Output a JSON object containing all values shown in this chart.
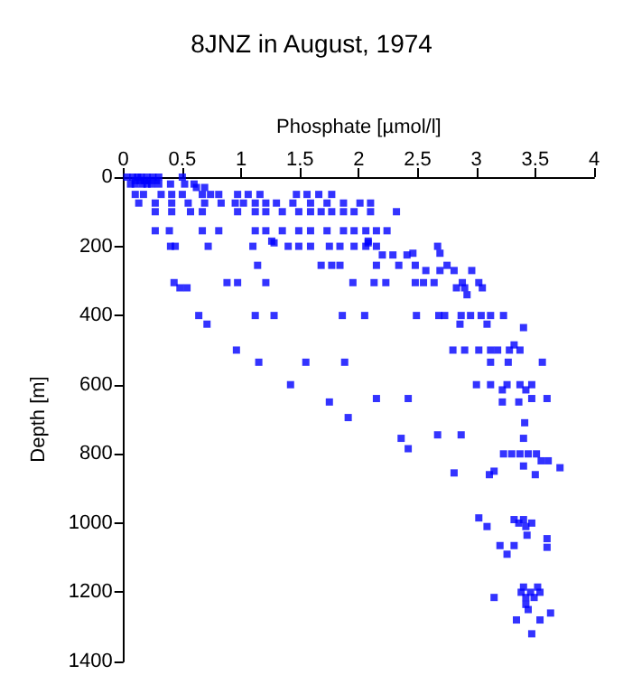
{
  "chart_data": {
    "type": "scatter",
    "title": "8JNZ in August, 1974",
    "xlabel": "Phosphate [µmol/l]",
    "ylabel": "Depth [m]",
    "xlim": [
      0,
      4
    ],
    "xticks": [
      0,
      0.5,
      1,
      1.5,
      2,
      2.5,
      3,
      3.5,
      4
    ],
    "ylim": [
      1400,
      0
    ],
    "yticks": [
      0,
      200,
      400,
      600,
      800,
      1000,
      1200,
      1400
    ],
    "grid": false,
    "marker": "square",
    "series": [
      {
        "color": "#0000ff",
        "x": [
          0.03,
          0.08,
          0.12,
          0.15,
          0.2,
          0.25,
          0.3,
          0.5,
          0.1,
          0.14,
          0.18,
          0.22,
          0.28,
          0.06,
          0.1,
          0.16,
          0.2,
          0.24,
          0.3,
          0.4,
          0.52,
          0.6,
          0.62,
          0.69,
          0.1,
          0.17,
          0.32,
          0.41,
          0.5,
          0.67,
          0.74,
          0.81,
          0.97,
          1.06,
          1.16,
          1.47,
          1.56,
          1.66,
          1.77,
          0.13,
          0.27,
          0.41,
          0.55,
          0.69,
          0.83,
          0.95,
          1.02,
          1.12,
          1.21,
          1.3,
          1.44,
          1.59,
          1.73,
          1.87,
          2.01,
          2.1,
          0.27,
          0.41,
          0.57,
          0.67,
          0.97,
          1.12,
          1.21,
          1.35,
          1.49,
          1.59,
          1.68,
          1.77,
          1.87,
          1.96,
          2.1,
          2.32,
          0.27,
          0.39,
          0.67,
          0.81,
          1.12,
          1.21,
          1.35,
          1.49,
          1.59,
          1.73,
          1.87,
          1.96,
          2.06,
          2.15,
          2.24,
          1.26,
          2.08,
          0.4,
          0.44,
          0.72,
          1.1,
          1.4,
          1.49,
          1.59,
          1.75,
          1.84,
          1.96,
          2.06,
          2.15,
          2.67,
          1.28,
          2.08,
          2.2,
          2.29,
          2.41,
          2.46,
          2.69,
          1.14,
          1.68,
          1.77,
          1.84,
          2.15,
          2.34,
          2.48,
          2.75,
          2.57,
          2.69,
          2.81,
          2.96,
          0.43,
          0.88,
          0.97,
          1.21,
          1.95,
          2.13,
          2.23,
          2.48,
          2.55,
          2.64,
          2.88,
          3.02,
          0.48,
          0.54,
          2.83,
          2.9,
          3.05,
          2.92,
          0.64,
          1.12,
          1.28,
          1.86,
          2.05,
          2.49,
          2.68,
          2.73,
          2.87,
          2.95,
          3.04,
          3.12,
          3.23,
          0.71,
          2.86,
          3.09,
          3.4,
          0.96,
          2.8,
          2.9,
          3.02,
          3.12,
          3.18,
          3.28,
          3.37,
          3.32,
          1.15,
          1.55,
          1.88,
          3.12,
          3.27,
          3.56,
          1.42,
          3.0,
          3.12,
          3.26,
          3.37,
          3.47,
          3.22,
          3.42,
          2.15,
          2.42,
          3.47,
          3.6,
          1.75,
          3.22,
          3.36,
          1.91,
          3.41,
          2.67,
          2.87,
          2.36,
          3.4,
          2.42,
          3.23,
          3.3,
          3.37,
          3.44,
          3.51,
          3.55,
          3.61,
          3.71,
          3.4,
          2.81,
          3.11,
          3.5,
          3.15,
          3.02,
          3.32,
          3.4,
          3.36,
          3.47,
          3.09,
          3.42,
          3.43,
          3.6,
          3.2,
          3.32,
          3.6,
          3.26,
          3.4,
          3.52,
          3.38,
          3.46,
          3.54,
          3.15,
          3.42,
          3.49,
          3.42,
          3.44,
          3.63,
          3.34,
          3.54,
          3.47
        ],
        "values": [
          0,
          0,
          0,
          0,
          0,
          0,
          0,
          0,
          10,
          10,
          10,
          10,
          10,
          20,
          20,
          20,
          20,
          20,
          20,
          20,
          20,
          20,
          30,
          30,
          50,
          50,
          50,
          50,
          50,
          50,
          50,
          50,
          50,
          50,
          50,
          50,
          50,
          50,
          50,
          75,
          75,
          75,
          75,
          75,
          75,
          75,
          75,
          75,
          75,
          75,
          75,
          75,
          75,
          75,
          75,
          75,
          100,
          100,
          100,
          100,
          100,
          100,
          100,
          100,
          100,
          100,
          100,
          100,
          100,
          100,
          100,
          100,
          155,
          155,
          155,
          155,
          155,
          155,
          155,
          155,
          155,
          155,
          155,
          155,
          155,
          155,
          155,
          185,
          185,
          200,
          200,
          200,
          200,
          200,
          200,
          200,
          200,
          200,
          200,
          200,
          200,
          200,
          190,
          190,
          225,
          225,
          225,
          220,
          220,
          255,
          255,
          255,
          255,
          255,
          255,
          255,
          255,
          270,
          270,
          270,
          270,
          305,
          305,
          305,
          305,
          305,
          305,
          305,
          305,
          305,
          305,
          305,
          305,
          320,
          320,
          320,
          320,
          320,
          340,
          400,
          400,
          400,
          400,
          400,
          400,
          400,
          400,
          400,
          400,
          400,
          400,
          400,
          425,
          425,
          425,
          435,
          500,
          500,
          500,
          500,
          500,
          500,
          500,
          500,
          485,
          535,
          535,
          535,
          535,
          535,
          535,
          600,
          600,
          600,
          600,
          600,
          600,
          615,
          615,
          640,
          640,
          640,
          640,
          650,
          650,
          650,
          695,
          710,
          745,
          745,
          755,
          755,
          785,
          800,
          800,
          800,
          800,
          800,
          820,
          820,
          840,
          835,
          855,
          860,
          860,
          850,
          985,
          990,
          990,
          1000,
          1000,
          1010,
          1010,
          1035,
          1045,
          1065,
          1065,
          1070,
          1090,
          1185,
          1185,
          1200,
          1200,
          1200,
          1215,
          1215,
          1215,
          1235,
          1250,
          1260,
          1280,
          1280,
          1320
        ]
      }
    ]
  }
}
